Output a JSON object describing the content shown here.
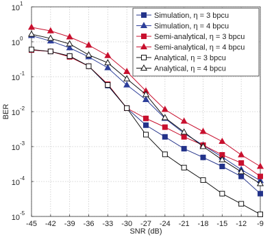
{
  "chart_data": {
    "type": "line",
    "x_label": "SNR (dB)",
    "y_label": "BER",
    "log_y": true,
    "grid": true,
    "legend": "upper right",
    "xlim": [
      -45,
      -9
    ],
    "xticks": [
      -45,
      -42,
      -39,
      -36,
      -33,
      -30,
      -27,
      -24,
      -21,
      -18,
      -15,
      -12,
      -9
    ],
    "ylim": [
      1e-05,
      10
    ],
    "yticks": [
      {
        "value": 1e-05,
        "label": "10",
        "exponent": "-5"
      },
      {
        "value": 0.0001,
        "label": "10",
        "exponent": "-4"
      },
      {
        "value": 0.001,
        "label": "10",
        "exponent": "-3"
      },
      {
        "value": 0.01,
        "label": "10",
        "exponent": "-2"
      },
      {
        "value": 0.1,
        "label": "10",
        "exponent": "-1"
      },
      {
        "value": 1,
        "label": "10",
        "exponent": "0"
      },
      {
        "value": 10,
        "label": "10",
        "exponent": "1"
      }
    ],
    "x": [
      -45,
      -42,
      -39,
      -36,
      -33,
      -30,
      -27,
      -24,
      -21,
      -18,
      -15,
      -12,
      -9
    ],
    "series": [
      {
        "name": "Simulation, η = 3 bpcu",
        "color": "#23338a",
        "marker": "square",
        "filled": true,
        "values": [
          0.58,
          0.53,
          0.39,
          0.2,
          0.056,
          0.0126,
          0.0041,
          0.0019,
          0.00087,
          0.00049,
          0.00027,
          0.00014,
          4.5e-05
        ]
      },
      {
        "name": "Simulation, η = 4 bpcu",
        "color": "#2d3f9a",
        "marker": "triangle",
        "filled": true,
        "values": [
          1.5,
          1.05,
          0.67,
          0.37,
          0.18,
          0.058,
          0.022,
          0.0064,
          0.0024,
          0.0011,
          0.0005,
          0.00022,
          0.000106
        ]
      },
      {
        "name": "Semi-analytical, η = 3 bpcu",
        "color": "#c8102e",
        "marker": "square",
        "filled": true,
        "values": [
          0.58,
          0.53,
          0.37,
          0.2,
          0.061,
          0.0126,
          0.0064,
          0.0036,
          0.0019,
          0.0011,
          0.00058,
          0.00034,
          0.00014
        ]
      },
      {
        "name": "Semi-analytical, η = 4 bpcu",
        "color": "#c8102e",
        "marker": "triangle",
        "filled": true,
        "values": [
          2.6,
          2.05,
          1.37,
          0.8,
          0.4,
          0.14,
          0.039,
          0.0115,
          0.0053,
          0.0027,
          0.0014,
          0.00058,
          0.00027
        ]
      },
      {
        "name": "Analytical, η = 3 bpcu",
        "color": "#111111",
        "marker": "square",
        "filled": false,
        "values": [
          0.6,
          0.53,
          0.39,
          0.2,
          0.058,
          0.0126,
          0.0022,
          0.0006,
          0.00025,
          0.00011,
          4.5e-05,
          2.3e-05,
          1.15e-05
        ]
      },
      {
        "name": "Analytical, η = 4 bpcu",
        "color": "#111111",
        "marker": "triangle",
        "filled": false,
        "values": [
          1.64,
          1.25,
          0.87,
          0.42,
          0.25,
          0.087,
          0.031,
          0.0067,
          0.0026,
          0.001,
          0.00042,
          0.00019,
          8.7e-05
        ]
      }
    ]
  }
}
